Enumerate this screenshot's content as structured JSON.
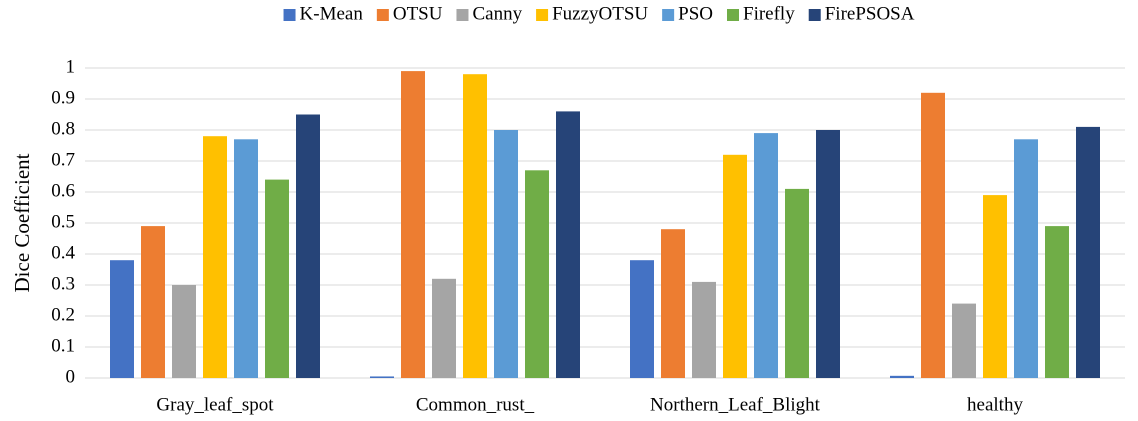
{
  "chart_data": {
    "type": "bar",
    "y_label": "Dice Coefficient",
    "categories": [
      "Gray_leaf_spot",
      "Common_rust_",
      "Northern_Leaf_Blight",
      "healthy"
    ],
    "series": [
      {
        "name": "K-Mean",
        "color": "#4472c4",
        "values": [
          0.38,
          0.005,
          0.38,
          0.007
        ]
      },
      {
        "name": "OTSU",
        "color": "#ed7d31",
        "values": [
          0.49,
          0.99,
          0.48,
          0.92
        ]
      },
      {
        "name": "Canny",
        "color": "#a5a5a5",
        "values": [
          0.3,
          0.32,
          0.31,
          0.24
        ]
      },
      {
        "name": "FuzzyOTSU",
        "color": "#ffc000",
        "values": [
          0.78,
          0.98,
          0.72,
          0.59
        ]
      },
      {
        "name": "PSO",
        "color": "#5b9bd5",
        "values": [
          0.77,
          0.8,
          0.79,
          0.77
        ]
      },
      {
        "name": "Firefly",
        "color": "#70ad47",
        "values": [
          0.64,
          0.67,
          0.61,
          0.49
        ]
      },
      {
        "name": "FirePSOSA",
        "color": "#264478",
        "values": [
          0.85,
          0.86,
          0.8,
          0.81
        ]
      }
    ],
    "ylim": [
      0,
      1
    ],
    "yticks": [
      0,
      0.1,
      0.2,
      0.3,
      0.4,
      0.5,
      0.6,
      0.7,
      0.8,
      0.9,
      1
    ],
    "grid": true,
    "legend": "top"
  }
}
